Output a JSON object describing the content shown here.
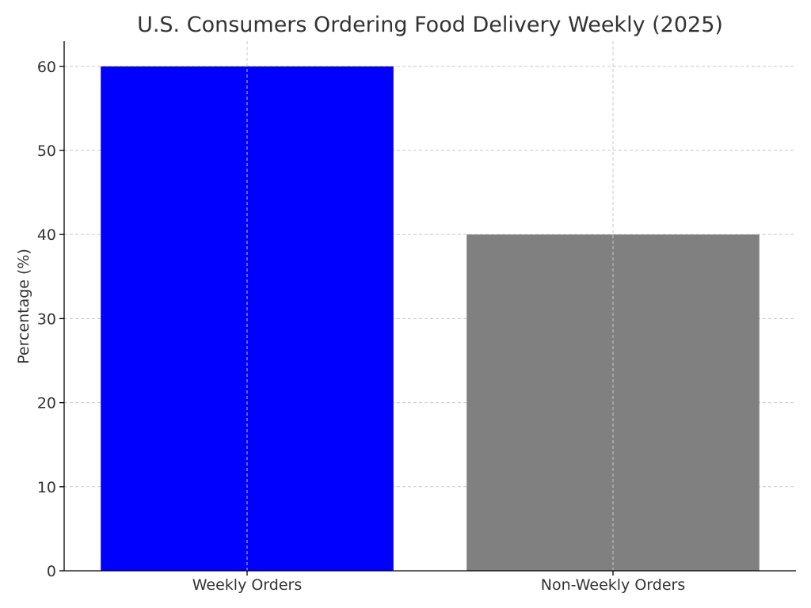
{
  "chart_data": {
    "type": "bar",
    "title": "U.S. Consumers Ordering Food Delivery Weekly (2025)",
    "xlabel": "",
    "ylabel": "Percentage (%)",
    "categories": [
      "Weekly Orders",
      "Non-Weekly Orders"
    ],
    "values": [
      60,
      40
    ],
    "colors": [
      "#0000ff",
      "#808080"
    ],
    "ylim": [
      0,
      63
    ],
    "yticks": [
      0,
      10,
      20,
      30,
      40,
      50,
      60
    ],
    "grid": true,
    "legend": "none"
  }
}
